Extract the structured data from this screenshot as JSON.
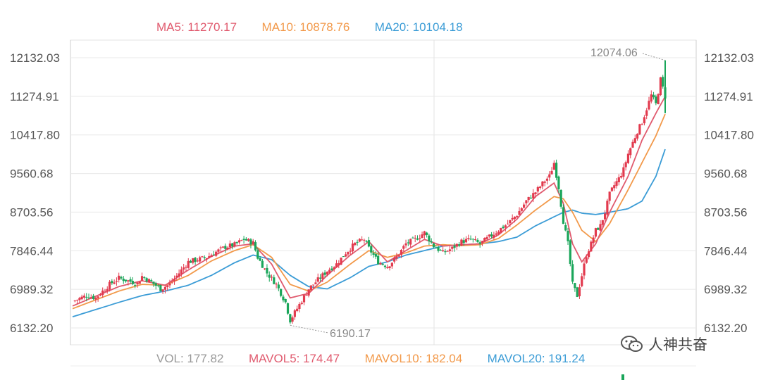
{
  "chart_data": {
    "type": "candlestick",
    "y_ticks": [
      "12132.03",
      "11274.91",
      "10417.80",
      "9560.68",
      "8703.56",
      "7846.44",
      "6989.32",
      "6132.20"
    ],
    "ylim": [
      6132.2,
      12132.03
    ],
    "annotations": {
      "high_label": "12074.06",
      "low_label": "6190.17"
    },
    "legend_top": {
      "ma5": {
        "label": "MA5: ",
        "value": "11270.17",
        "color": "#e05a6e"
      },
      "ma10": {
        "label": "MA10: ",
        "value": "10878.76",
        "color": "#f2994a"
      },
      "ma20": {
        "label": "MA20: ",
        "value": "10104.18",
        "color": "#3b9cd6"
      }
    },
    "legend_bottom": {
      "vol": {
        "label": "VOL: ",
        "value": "177.82",
        "color": "#999999"
      },
      "mavol5": {
        "label": "MAVOL5: ",
        "value": "174.47",
        "color": "#e05a6e"
      },
      "mavol10": {
        "label": "MAVOL10: ",
        "value": "182.04",
        "color": "#f2994a"
      },
      "mavol20": {
        "label": "MAVOL20: ",
        "value": "191.24",
        "color": "#3b9cd6"
      }
    },
    "up_color": "#e23a4e",
    "down_color": "#1aa65a",
    "grid": true,
    "close_path": [
      [
        0,
        6720
      ],
      [
        6,
        6850
      ],
      [
        10,
        6800
      ],
      [
        16,
        7100
      ],
      [
        20,
        7240
      ],
      [
        24,
        7180
      ],
      [
        28,
        7120
      ],
      [
        30,
        7280
      ],
      [
        34,
        7150
      ],
      [
        38,
        7000
      ],
      [
        42,
        7100
      ],
      [
        46,
        7350
      ],
      [
        50,
        7600
      ],
      [
        54,
        7650
      ],
      [
        58,
        7700
      ],
      [
        62,
        7820
      ],
      [
        66,
        7930
      ],
      [
        70,
        7980
      ],
      [
        74,
        8100
      ],
      [
        78,
        8020
      ],
      [
        80,
        7700
      ],
      [
        84,
        7350
      ],
      [
        88,
        7100
      ],
      [
        92,
        6700
      ],
      [
        94,
        6300
      ],
      [
        98,
        6650
      ],
      [
        102,
        7000
      ],
      [
        106,
        7200
      ],
      [
        110,
        7400
      ],
      [
        114,
        7550
      ],
      [
        118,
        7800
      ],
      [
        122,
        8000
      ],
      [
        126,
        8100
      ],
      [
        128,
        7900
      ],
      [
        132,
        7600
      ],
      [
        136,
        7500
      ],
      [
        140,
        7700
      ],
      [
        144,
        8000
      ],
      [
        148,
        8100
      ],
      [
        152,
        8250
      ],
      [
        156,
        7950
      ],
      [
        160,
        7800
      ],
      [
        164,
        7900
      ],
      [
        168,
        8050
      ],
      [
        172,
        8100
      ],
      [
        176,
        8000
      ],
      [
        180,
        8150
      ],
      [
        184,
        8300
      ],
      [
        188,
        8450
      ],
      [
        192,
        8650
      ],
      [
        196,
        8950
      ],
      [
        200,
        9150
      ],
      [
        204,
        9400
      ],
      [
        206,
        9500
      ],
      [
        208,
        9800
      ],
      [
        210,
        9250
      ],
      [
        212,
        8500
      ],
      [
        214,
        8000
      ],
      [
        216,
        7100
      ],
      [
        218,
        6850
      ],
      [
        220,
        7300
      ],
      [
        222,
        7750
      ],
      [
        224,
        8000
      ],
      [
        226,
        8300
      ],
      [
        228,
        8400
      ],
      [
        230,
        8700
      ],
      [
        232,
        9100
      ],
      [
        234,
        9300
      ],
      [
        236,
        9450
      ],
      [
        238,
        9650
      ],
      [
        240,
        10000
      ],
      [
        242,
        10250
      ],
      [
        244,
        10500
      ],
      [
        246,
        10700
      ],
      [
        248,
        11000
      ],
      [
        250,
        11300
      ],
      [
        252,
        11100
      ],
      [
        254,
        11650
      ],
      [
        256,
        11270
      ]
    ],
    "ma5": [
      [
        0,
        6620
      ],
      [
        20,
        7050
      ],
      [
        30,
        7180
      ],
      [
        40,
        7080
      ],
      [
        50,
        7420
      ],
      [
        60,
        7720
      ],
      [
        70,
        7950
      ],
      [
        78,
        8000
      ],
      [
        86,
        7550
      ],
      [
        94,
        6800
      ],
      [
        102,
        6900
      ],
      [
        110,
        7300
      ],
      [
        120,
        7750
      ],
      [
        128,
        8050
      ],
      [
        136,
        7600
      ],
      [
        144,
        7850
      ],
      [
        152,
        8100
      ],
      [
        160,
        7950
      ],
      [
        168,
        7980
      ],
      [
        176,
        8000
      ],
      [
        184,
        8200
      ],
      [
        192,
        8550
      ],
      [
        200,
        9050
      ],
      [
        208,
        9350
      ],
      [
        212,
        8900
      ],
      [
        216,
        8000
      ],
      [
        220,
        7600
      ],
      [
        226,
        8000
      ],
      [
        232,
        8700
      ],
      [
        240,
        9500
      ],
      [
        246,
        10300
      ],
      [
        252,
        10900
      ],
      [
        256,
        11270
      ]
    ],
    "ma10": [
      [
        0,
        6560
      ],
      [
        20,
        6950
      ],
      [
        30,
        7100
      ],
      [
        40,
        7080
      ],
      [
        50,
        7300
      ],
      [
        60,
        7620
      ],
      [
        70,
        7850
      ],
      [
        78,
        7980
      ],
      [
        86,
        7700
      ],
      [
        94,
        7100
      ],
      [
        102,
        6950
      ],
      [
        110,
        7150
      ],
      [
        120,
        7550
      ],
      [
        128,
        7850
      ],
      [
        136,
        7700
      ],
      [
        144,
        7800
      ],
      [
        152,
        7950
      ],
      [
        160,
        7980
      ],
      [
        168,
        7960
      ],
      [
        176,
        7980
      ],
      [
        184,
        8120
      ],
      [
        192,
        8420
      ],
      [
        200,
        8750
      ],
      [
        208,
        9050
      ],
      [
        212,
        9000
      ],
      [
        216,
        8700
      ],
      [
        220,
        8300
      ],
      [
        226,
        8050
      ],
      [
        232,
        8450
      ],
      [
        240,
        9200
      ],
      [
        246,
        9800
      ],
      [
        252,
        10400
      ],
      [
        256,
        10880
      ]
    ],
    "ma20": [
      [
        0,
        6380
      ],
      [
        20,
        6700
      ],
      [
        30,
        6850
      ],
      [
        40,
        6950
      ],
      [
        50,
        7080
      ],
      [
        60,
        7300
      ],
      [
        70,
        7580
      ],
      [
        78,
        7750
      ],
      [
        86,
        7650
      ],
      [
        94,
        7300
      ],
      [
        102,
        7050
      ],
      [
        110,
        7000
      ],
      [
        120,
        7250
      ],
      [
        128,
        7500
      ],
      [
        136,
        7600
      ],
      [
        144,
        7750
      ],
      [
        152,
        7850
      ],
      [
        160,
        7950
      ],
      [
        168,
        7980
      ],
      [
        176,
        8000
      ],
      [
        184,
        8050
      ],
      [
        192,
        8150
      ],
      [
        200,
        8400
      ],
      [
        208,
        8600
      ],
      [
        212,
        8700
      ],
      [
        216,
        8750
      ],
      [
        220,
        8680
      ],
      [
        226,
        8650
      ],
      [
        232,
        8700
      ],
      [
        240,
        8780
      ],
      [
        246,
        8950
      ],
      [
        252,
        9500
      ],
      [
        256,
        10100
      ]
    ]
  },
  "watermark": {
    "text": "人神共奋"
  }
}
